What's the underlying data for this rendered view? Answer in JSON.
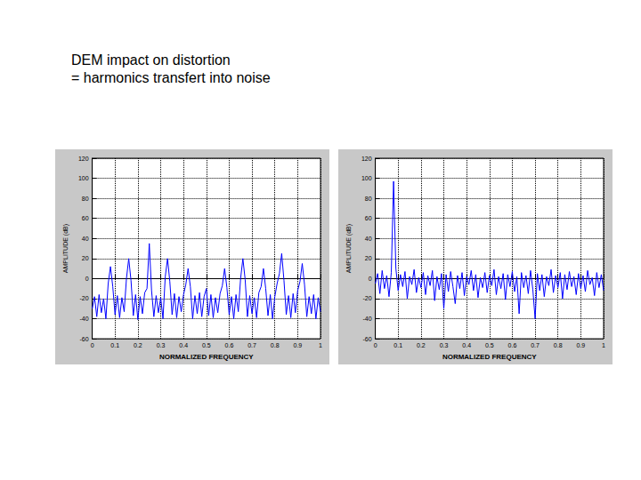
{
  "heading": [
    "DEM impact on distortion",
    "= harmonics transfert into noise"
  ],
  "chart_data": [
    {
      "type": "line",
      "xlabel": "NORMALIZED FREQUENCY",
      "ylabel": "AMPLITUDE (dB)",
      "color": "#0000ff",
      "grid": true,
      "marker": "none",
      "xlim": [
        0,
        1
      ],
      "xticks": [
        0,
        0.1,
        0.2,
        0.3,
        0.4,
        0.5,
        0.6,
        0.7,
        0.8,
        0.9,
        1
      ],
      "ylim": [
        -60,
        120
      ],
      "yticks": [
        -60,
        -40,
        -20,
        0,
        20,
        40,
        60,
        80,
        100,
        120
      ],
      "x": [
        0,
        0.01,
        0.02,
        0.03,
        0.04,
        0.05,
        0.06,
        0.07,
        0.08,
        0.09,
        0.1,
        0.11,
        0.12,
        0.13,
        0.14,
        0.15,
        0.16,
        0.17,
        0.18,
        0.19,
        0.2,
        0.21,
        0.22,
        0.23,
        0.24,
        0.25,
        0.26,
        0.27,
        0.28,
        0.29,
        0.3,
        0.31,
        0.32,
        0.33,
        0.34,
        0.35,
        0.36,
        0.37,
        0.38,
        0.39,
        0.4,
        0.41,
        0.42,
        0.43,
        0.44,
        0.45,
        0.46,
        0.47,
        0.48,
        0.49,
        0.5,
        0.51,
        0.52,
        0.53,
        0.54,
        0.55,
        0.56,
        0.57,
        0.58,
        0.59,
        0.6,
        0.61,
        0.62,
        0.63,
        0.64,
        0.65,
        0.66,
        0.67,
        0.68,
        0.69,
        0.7,
        0.71,
        0.72,
        0.73,
        0.74,
        0.75,
        0.76,
        0.77,
        0.78,
        0.79,
        0.8,
        0.81,
        0.82,
        0.83,
        0.84,
        0.85,
        0.86,
        0.87,
        0.88,
        0.89,
        0.9,
        0.91,
        0.92,
        0.93,
        0.94,
        0.95,
        0.96,
        0.97,
        0.98,
        0.99,
        1
      ],
      "values": [
        -30,
        -18,
        -38,
        -16,
        -34,
        -20,
        -40,
        -5,
        12,
        -8,
        -36,
        -17,
        -39,
        -19,
        -33,
        0,
        20,
        -2,
        -37,
        -16,
        -41,
        -18,
        -35,
        -14,
        -10,
        35,
        -12,
        -38,
        -17,
        -34,
        -19,
        -40,
        2,
        20,
        -3,
        -36,
        -15,
        -39,
        -18,
        -33,
        -16,
        -6,
        10,
        -8,
        -40,
        -17,
        -35,
        -14,
        -38,
        -18,
        -10,
        -37,
        -16,
        -39,
        -19,
        -34,
        -15,
        -7,
        10,
        -9,
        -36,
        -18,
        -40,
        -16,
        -33,
        0,
        20,
        -1,
        -38,
        -17,
        -35,
        -19,
        -39,
        -14,
        -8,
        10,
        -10,
        -37,
        -16,
        -40,
        -18,
        -5,
        5,
        25,
        -2,
        -36,
        -17,
        -39,
        -15,
        -34,
        -12,
        -3,
        15,
        -6,
        -38,
        -18,
        -35,
        -16,
        -40,
        -19,
        -33
      ]
    },
    {
      "type": "line",
      "xlabel": "NORMALIZED FREQUENCY",
      "ylabel": "AMPLITUDE (dB)",
      "color": "#0000ff",
      "grid": true,
      "marker": "none",
      "xlim": [
        0,
        1
      ],
      "xticks": [
        0,
        0.1,
        0.2,
        0.3,
        0.4,
        0.5,
        0.6,
        0.7,
        0.8,
        0.9,
        1
      ],
      "ylim": [
        -60,
        120
      ],
      "yticks": [
        -60,
        -40,
        -20,
        0,
        20,
        40,
        60,
        80,
        100,
        120
      ],
      "x": [
        0,
        0.01,
        0.02,
        0.03,
        0.04,
        0.05,
        0.06,
        0.07,
        0.08,
        0.09,
        0.1,
        0.11,
        0.12,
        0.13,
        0.14,
        0.15,
        0.16,
        0.17,
        0.18,
        0.19,
        0.2,
        0.21,
        0.22,
        0.23,
        0.24,
        0.25,
        0.26,
        0.27,
        0.28,
        0.29,
        0.3,
        0.31,
        0.32,
        0.33,
        0.34,
        0.35,
        0.36,
        0.37,
        0.38,
        0.39,
        0.4,
        0.41,
        0.42,
        0.43,
        0.44,
        0.45,
        0.46,
        0.47,
        0.48,
        0.49,
        0.5,
        0.51,
        0.52,
        0.53,
        0.54,
        0.55,
        0.56,
        0.57,
        0.58,
        0.59,
        0.6,
        0.61,
        0.62,
        0.63,
        0.64,
        0.65,
        0.66,
        0.67,
        0.68,
        0.69,
        0.7,
        0.71,
        0.72,
        0.73,
        0.74,
        0.75,
        0.76,
        0.77,
        0.78,
        0.79,
        0.8,
        0.81,
        0.82,
        0.83,
        0.84,
        0.85,
        0.86,
        0.87,
        0.88,
        0.89,
        0.9,
        0.91,
        0.92,
        0.93,
        0.94,
        0.95,
        0.96,
        0.97,
        0.98,
        0.99,
        1
      ],
      "values": [
        -5,
        5,
        -15,
        8,
        -10,
        3,
        -18,
        6,
        97,
        10,
        -12,
        4,
        -8,
        7,
        -20,
        2,
        -6,
        9,
        -14,
        1,
        -9,
        6,
        -16,
        3,
        -7,
        8,
        -22,
        2,
        -11,
        5,
        -30,
        4,
        -13,
        7,
        -8,
        -25,
        3,
        -10,
        6,
        -17,
        2,
        -6,
        8,
        -12,
        4,
        -19,
        1,
        -9,
        6,
        -14,
        3,
        -7,
        9,
        -16,
        2,
        -10,
        5,
        -21,
        4,
        -8,
        7,
        -13,
        2,
        -35,
        6,
        -9,
        3,
        -15,
        8,
        -11,
        -40,
        5,
        -12,
        4,
        -18,
        2,
        -7,
        9,
        -14,
        3,
        -9,
        6,
        -20,
        4,
        -11,
        7,
        -8,
        2,
        -16,
        5,
        -10,
        3,
        -13,
        8,
        -6,
        1,
        -17,
        6,
        -9,
        4,
        -12
      ]
    }
  ]
}
